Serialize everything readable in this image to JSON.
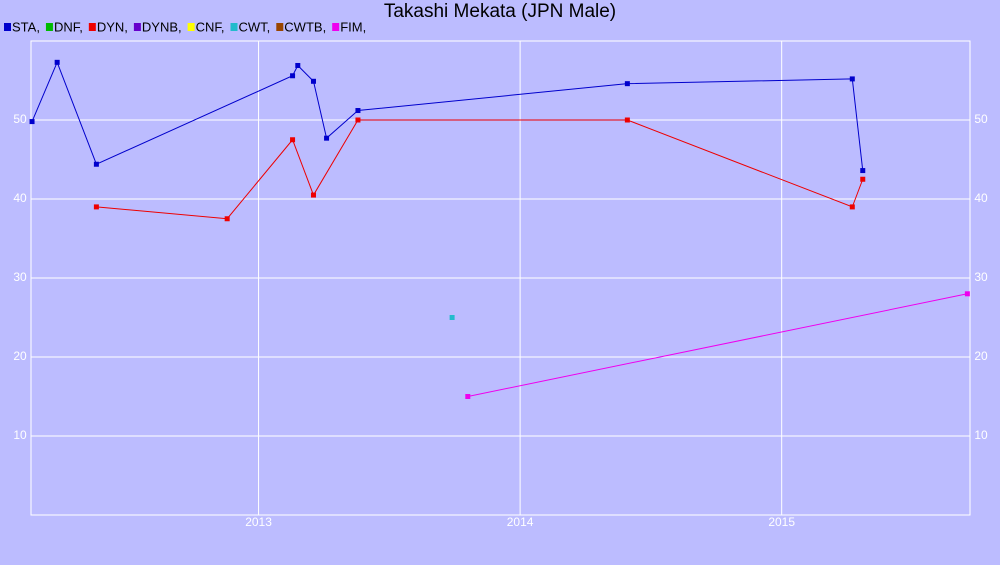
{
  "chart_data": {
    "type": "line",
    "title": "Takashi Mekata (JPN Male)",
    "series": [
      {
        "name": "STA,",
        "color": "#0000cc",
        "x": [
          2012.134,
          2012.23,
          2012.38,
          2013.13,
          2013.15,
          2013.21,
          2013.26,
          2013.38,
          2014.41,
          2015.27,
          2015.31
        ],
        "values": [
          49.8,
          57.3,
          44.4,
          55.6,
          56.9,
          54.9,
          47.7,
          51.2,
          54.6,
          55.2,
          43.6
        ]
      },
      {
        "name": "DNF,",
        "color": "#00bb00",
        "x": [],
        "values": []
      },
      {
        "name": "DYN,",
        "color": "#ee0000",
        "x": [
          2012.38,
          2012.88,
          2013.13,
          2013.21,
          2013.38,
          2014.41,
          2015.27,
          2015.31
        ],
        "values": [
          39.0,
          37.5,
          47.5,
          40.5,
          50,
          50,
          39,
          42.5
        ]
      },
      {
        "name": "DYNB,",
        "color": "#6600cc",
        "x": [],
        "values": []
      },
      {
        "name": "CNF,",
        "color": "#ffff00",
        "x": [],
        "values": []
      },
      {
        "name": "CWT,",
        "color": "#22bbcc",
        "x": [
          2013.74
        ],
        "values": [
          25
        ]
      },
      {
        "name": "CWTB,",
        "color": "#994400",
        "x": [],
        "values": []
      },
      {
        "name": "FIM,",
        "color": "#ee00ee",
        "x": [
          2013.8,
          2015.71
        ],
        "values": [
          15,
          28
        ]
      }
    ],
    "xlim": [
      2012.13,
      2015.72
    ],
    "xticks": [
      2013,
      2014,
      2015
    ],
    "ylim": [
      0,
      60
    ],
    "yticks": [
      10,
      20,
      30,
      40,
      50
    ],
    "grid": true
  }
}
